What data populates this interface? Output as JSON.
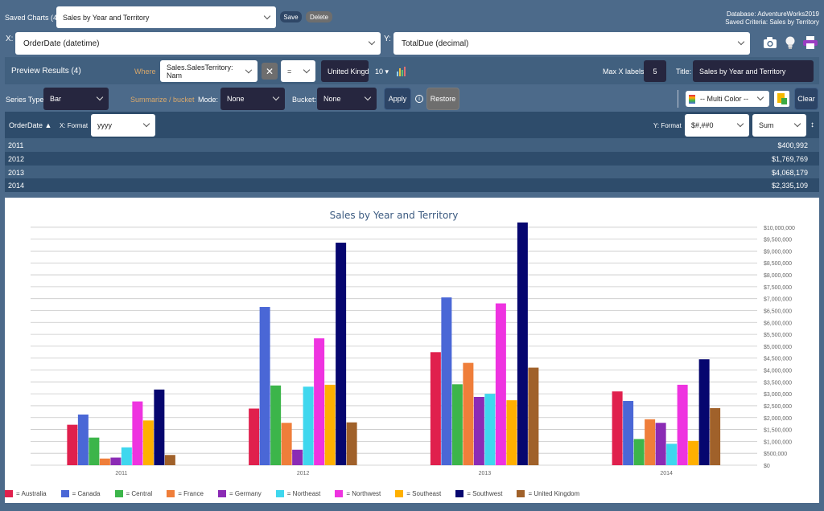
{
  "top": {
    "saved_charts_label": "Saved Charts (4):",
    "saved_chart_value": "Sales by Year and Territory",
    "save_label": "Save",
    "delete_label": "Delete",
    "database_text": "Database: AdventureWorks2019",
    "criteria_text": "Saved Criteria: Sales by Territory"
  },
  "axes_select": {
    "x_label": "X:",
    "x_value": "OrderDate  (datetime)",
    "y_label": "Y:",
    "y_value": "TotalDue  (decimal)"
  },
  "preview": {
    "title": "Preview Results (4)",
    "where_label": "Where",
    "where_field": "Sales.SalesTerritory: Nam",
    "operator": "=",
    "where_value": "United Kingdom",
    "top_n": "10",
    "max_x_label": "Max X labels:",
    "max_x_value": "5",
    "title_label": "Title:",
    "title_value": "Sales by Year and Territory"
  },
  "series": {
    "series_type_label": "Series Type:",
    "series_type_value": "Bar",
    "summarize_label": "Summarize / bucket",
    "mode_label": "Mode:",
    "mode_value": "None",
    "bucket_label": "Bucket:",
    "bucket_value": "None",
    "apply_label": "Apply",
    "restore_label": "Restore",
    "color_scheme": "-- Multi Color --",
    "clear_label": "Clear"
  },
  "results": {
    "x_col": "OrderDate",
    "x_format_label": "X: Format",
    "x_format_value": "yyyy",
    "y_format_label": "Y: Format",
    "y_format_value": "$#,##0",
    "agg_value": "Sum",
    "rows": [
      {
        "x": "2011",
        "y": "$400,992"
      },
      {
        "x": "2012",
        "y": "$1,769,769"
      },
      {
        "x": "2013",
        "y": "$4,068,179"
      },
      {
        "x": "2014",
        "y": "$2,335,109"
      }
    ]
  },
  "chart_data": {
    "type": "bar",
    "title": "Sales by Year and Territory",
    "categories": [
      "2011",
      "2012",
      "2013",
      "2014"
    ],
    "ylim": [
      0,
      10500000
    ],
    "yticks": [
      "$0",
      "$500,000",
      "$1,000,000",
      "$1,500,000",
      "$2,000,000",
      "$2,500,000",
      "$3,000,000",
      "$3,500,000",
      "$4,000,000",
      "$4,500,000",
      "$5,000,000",
      "$5,500,000",
      "$6,000,000",
      "$6,500,000",
      "$7,000,000",
      "$7,500,000",
      "$8,000,000",
      "$8,500,000",
      "$9,000,000",
      "$9,500,000",
      "$10,000,000"
    ],
    "legend_position": "bottom-left",
    "series": [
      {
        "name": "Australia",
        "color": "#e0204d",
        "values": [
          1700000,
          2380000,
          4750000,
          3100000
        ]
      },
      {
        "name": "Canada",
        "color": "#4a67d6",
        "values": [
          2130000,
          6650000,
          7050000,
          2700000
        ]
      },
      {
        "name": "Central",
        "color": "#3cb54a",
        "values": [
          1160000,
          3350000,
          3400000,
          1100000
        ]
      },
      {
        "name": "France",
        "color": "#ef7e3a",
        "values": [
          280000,
          1780000,
          4300000,
          1930000
        ]
      },
      {
        "name": "Germany",
        "color": "#8b2bb5",
        "values": [
          320000,
          650000,
          2870000,
          1780000
        ]
      },
      {
        "name": "Northeast",
        "color": "#3fd7ee",
        "values": [
          750000,
          3300000,
          3000000,
          900000
        ]
      },
      {
        "name": "Northwest",
        "color": "#ee33e0",
        "values": [
          2680000,
          5330000,
          6800000,
          3380000
        ]
      },
      {
        "name": "Southeast",
        "color": "#ffb000",
        "values": [
          1880000,
          3380000,
          2730000,
          1020000
        ]
      },
      {
        "name": "Southwest",
        "color": "#06066f",
        "values": [
          3180000,
          9350000,
          10200000,
          4450000
        ]
      },
      {
        "name": "United Kingdom",
        "color": "#a0612a",
        "values": [
          430000,
          1800000,
          4100000,
          2400000
        ]
      }
    ]
  },
  "icons": [
    "camera-icon",
    "lightbulb-icon",
    "print-icon",
    "bar-chart-icon",
    "close-icon",
    "info-icon",
    "excel-icon",
    "sort-icon"
  ]
}
